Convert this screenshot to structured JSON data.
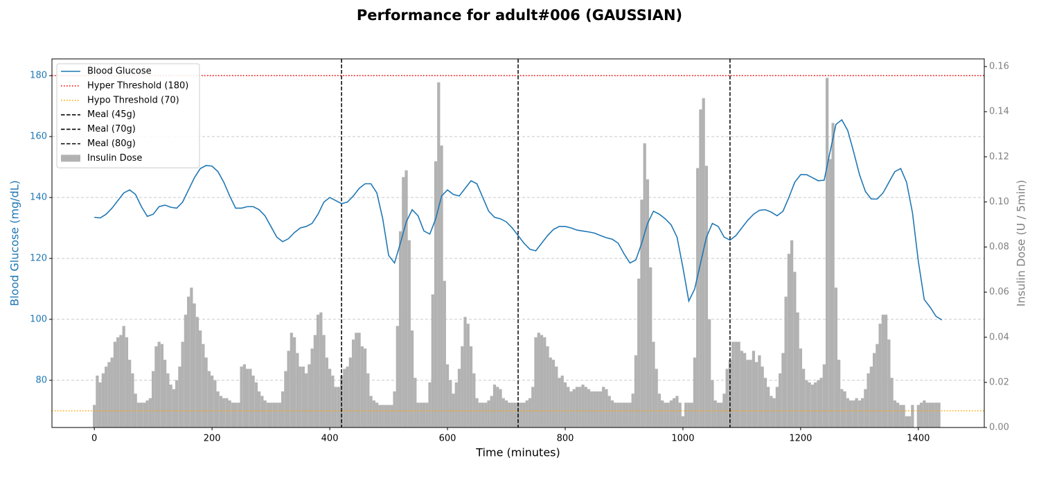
{
  "chart_data": {
    "type": "line",
    "title": "Performance for adult#006 (GAUSSIAN)",
    "xlabel": "Time (minutes)",
    "ylabel": "Blood Glucose (mg/dL)",
    "y2label": "Insulin Dose (U / 5min)",
    "xlim": [
      -72,
      1512
    ],
    "xticks": [
      0,
      200,
      400,
      600,
      800,
      1000,
      1200,
      1400
    ],
    "ylim": [
      64.5,
      185.5
    ],
    "yticks": [
      80,
      100,
      120,
      140,
      160,
      180
    ],
    "y2lim": [
      0,
      0.1634
    ],
    "y2ticks": [
      {
        "value": 0,
        "label": "0.00"
      },
      {
        "value": 0.02,
        "label": "0.02"
      },
      {
        "value": 0.04,
        "label": "0.04"
      },
      {
        "value": 0.06,
        "label": "0.06"
      },
      {
        "value": 0.08,
        "label": "0.08"
      },
      {
        "value": 0.1,
        "label": "0.10"
      },
      {
        "value": 0.12,
        "label": "0.12"
      },
      {
        "value": 0.14,
        "label": "0.14"
      },
      {
        "value": 0.16,
        "label": "0.16"
      }
    ],
    "grid": true,
    "legend": "upper left",
    "series": [
      {
        "name": "Blood Glucose",
        "type": "line",
        "color": "#1f77b4",
        "x": [
          0,
          10,
          20,
          30,
          40,
          50,
          60,
          70,
          80,
          90,
          100,
          110,
          120,
          130,
          140,
          150,
          160,
          170,
          180,
          190,
          200,
          210,
          220,
          230,
          240,
          250,
          260,
          270,
          280,
          290,
          300,
          310,
          320,
          330,
          340,
          350,
          360,
          370,
          380,
          390,
          400,
          410,
          420,
          430,
          440,
          450,
          460,
          470,
          480,
          490,
          500,
          510,
          520,
          530,
          540,
          550,
          560,
          570,
          580,
          590,
          600,
          610,
          620,
          630,
          640,
          650,
          660,
          670,
          680,
          690,
          700,
          710,
          720,
          730,
          740,
          750,
          760,
          770,
          780,
          790,
          800,
          810,
          820,
          830,
          840,
          850,
          860,
          870,
          880,
          890,
          900,
          910,
          920,
          930,
          940,
          950,
          960,
          970,
          980,
          990,
          1000,
          1010,
          1020,
          1030,
          1040,
          1050,
          1060,
          1070,
          1080,
          1090,
          1100,
          1110,
          1120,
          1130,
          1140,
          1150,
          1160,
          1170,
          1180,
          1190,
          1200,
          1210,
          1220,
          1230,
          1240,
          1250,
          1260,
          1270,
          1280,
          1290,
          1300,
          1310,
          1320,
          1330,
          1340,
          1350,
          1360,
          1370,
          1380,
          1390,
          1400,
          1410,
          1420,
          1430,
          1440
        ],
        "values": [
          133.5,
          133.3,
          134.5,
          136.5,
          139,
          141.5,
          142.5,
          141,
          137,
          133.8,
          134.5,
          137,
          137.5,
          136.8,
          136.5,
          138.5,
          142.5,
          146.5,
          149.5,
          150.5,
          150.3,
          148.5,
          145,
          140.5,
          136.5,
          136.5,
          137,
          137,
          136,
          134,
          130.5,
          127,
          125.5,
          126.5,
          128.5,
          130,
          130.5,
          131.5,
          134.5,
          138.5,
          140,
          139,
          138,
          138.5,
          140.5,
          143,
          144.5,
          144.5,
          141.5,
          133,
          121,
          118.5,
          125,
          132,
          136,
          134,
          129,
          128,
          133,
          140.5,
          142.5,
          141,
          140.5,
          143,
          145.5,
          144.5,
          140,
          135.5,
          133.5,
          133,
          132,
          130,
          127.5,
          125,
          123,
          122.5,
          125,
          127.5,
          129.5,
          130.5,
          130.5,
          130,
          129.3,
          129,
          128.7,
          128.3,
          127.5,
          126.8,
          126.3,
          125,
          121.5,
          118.5,
          119.5,
          125,
          131.5,
          135.5,
          134.5,
          133,
          131,
          127,
          117,
          106,
          110,
          118.5,
          127,
          131.5,
          130.5,
          127,
          126,
          127.5,
          130,
          132.5,
          134.5,
          135.8,
          136,
          135.2,
          134,
          135.5,
          140,
          145,
          147.5,
          147.5,
          146.5,
          145.5,
          145.7,
          155,
          164,
          165.5,
          162,
          155,
          147.5,
          142,
          139.5,
          139.5,
          141.5,
          145,
          148.5,
          149.5,
          145,
          135,
          119,
          106.5,
          104,
          101,
          99.8
        ]
      },
      {
        "name": "Insulin Dose",
        "type": "bar",
        "axis": "y2",
        "color": "#b2b2b2",
        "x": [
          0,
          5,
          10,
          15,
          20,
          25,
          30,
          35,
          40,
          45,
          50,
          55,
          60,
          65,
          70,
          75,
          80,
          85,
          90,
          95,
          100,
          105,
          110,
          115,
          120,
          125,
          130,
          135,
          140,
          145,
          150,
          155,
          160,
          165,
          170,
          175,
          180,
          185,
          190,
          195,
          200,
          205,
          210,
          215,
          220,
          225,
          230,
          235,
          240,
          245,
          250,
          255,
          260,
          265,
          270,
          275,
          280,
          285,
          290,
          295,
          300,
          305,
          310,
          315,
          320,
          325,
          330,
          335,
          340,
          345,
          350,
          355,
          360,
          365,
          370,
          375,
          380,
          385,
          390,
          395,
          400,
          405,
          410,
          415,
          420,
          425,
          430,
          435,
          440,
          445,
          450,
          455,
          460,
          465,
          470,
          475,
          480,
          485,
          490,
          495,
          500,
          505,
          510,
          515,
          520,
          525,
          530,
          535,
          540,
          545,
          550,
          555,
          560,
          565,
          570,
          575,
          580,
          585,
          590,
          595,
          600,
          605,
          610,
          615,
          620,
          625,
          630,
          635,
          640,
          645,
          650,
          655,
          660,
          665,
          670,
          675,
          680,
          685,
          690,
          695,
          700,
          705,
          710,
          715,
          720,
          725,
          730,
          735,
          740,
          745,
          750,
          755,
          760,
          765,
          770,
          775,
          780,
          785,
          790,
          795,
          800,
          805,
          810,
          815,
          820,
          825,
          830,
          835,
          840,
          845,
          850,
          855,
          860,
          865,
          870,
          875,
          880,
          885,
          890,
          895,
          900,
          905,
          910,
          915,
          920,
          925,
          930,
          935,
          940,
          945,
          950,
          955,
          960,
          965,
          970,
          975,
          980,
          985,
          990,
          995,
          1000,
          1005,
          1010,
          1015,
          1020,
          1025,
          1030,
          1035,
          1040,
          1045,
          1050,
          1055,
          1060,
          1065,
          1070,
          1075,
          1080,
          1085,
          1090,
          1095,
          1100,
          1105,
          1110,
          1115,
          1120,
          1125,
          1130,
          1135,
          1140,
          1145,
          1150,
          1155,
          1160,
          1165,
          1170,
          1175,
          1180,
          1185,
          1190,
          1195,
          1200,
          1205,
          1210,
          1215,
          1220,
          1225,
          1230,
          1235,
          1240,
          1245,
          1250,
          1255,
          1260,
          1265,
          1270,
          1275,
          1280,
          1285,
          1290,
          1295,
          1300,
          1305,
          1310,
          1315,
          1320,
          1325,
          1330,
          1335,
          1340,
          1345,
          1350,
          1355,
          1360,
          1365,
          1370,
          1375,
          1380,
          1385,
          1390,
          1395,
          1400,
          1405,
          1410,
          1415,
          1420,
          1425,
          1430,
          1435
        ],
        "values": [
          0.01,
          0.023,
          0.02,
          0.024,
          0.027,
          0.029,
          0.031,
          0.038,
          0.04,
          0.041,
          0.045,
          0.04,
          0.03,
          0.024,
          0.015,
          0.011,
          0.011,
          0.011,
          0.012,
          0.013,
          0.025,
          0.036,
          0.038,
          0.037,
          0.03,
          0.024,
          0.019,
          0.017,
          0.021,
          0.027,
          0.038,
          0.05,
          0.058,
          0.062,
          0.055,
          0.049,
          0.043,
          0.037,
          0.031,
          0.025,
          0.023,
          0.021,
          0.016,
          0.014,
          0.013,
          0.013,
          0.012,
          0.011,
          0.011,
          0.011,
          0.027,
          0.028,
          0.026,
          0.026,
          0.023,
          0.02,
          0.016,
          0.014,
          0.012,
          0.011,
          0.011,
          0.011,
          0.011,
          0.011,
          0.016,
          0.025,
          0.034,
          0.042,
          0.04,
          0.033,
          0.027,
          0.027,
          0.024,
          0.028,
          0.035,
          0.041,
          0.05,
          0.051,
          0.041,
          0.031,
          0.026,
          0.023,
          0.018,
          0.018,
          0.023,
          0.026,
          0.027,
          0.031,
          0.039,
          0.042,
          0.042,
          0.036,
          0.035,
          0.024,
          0.014,
          0.012,
          0.011,
          0.01,
          0.01,
          0.01,
          0.01,
          0.01,
          0.016,
          0.045,
          0.087,
          0.111,
          0.114,
          0.083,
          0.043,
          0.022,
          0.011,
          0.011,
          0.011,
          0.011,
          0.02,
          0.059,
          0.118,
          0.153,
          0.125,
          0.065,
          0.028,
          0.021,
          0.015,
          0.02,
          0.026,
          0.036,
          0.049,
          0.046,
          0.036,
          0.024,
          0.013,
          0.011,
          0.011,
          0.011,
          0.012,
          0.014,
          0.019,
          0.018,
          0.017,
          0.013,
          0.012,
          0.011,
          0.011,
          0.011,
          0.011,
          0.011,
          0.011,
          0.012,
          0.013,
          0.018,
          0.04,
          0.042,
          0.041,
          0.04,
          0.036,
          0.031,
          0.03,
          0.027,
          0.022,
          0.023,
          0.02,
          0.018,
          0.016,
          0.017,
          0.018,
          0.018,
          0.019,
          0.018,
          0.017,
          0.016,
          0.016,
          0.016,
          0.016,
          0.018,
          0.017,
          0.014,
          0.012,
          0.011,
          0.011,
          0.011,
          0.011,
          0.011,
          0.011,
          0.015,
          0.032,
          0.066,
          0.101,
          0.126,
          0.11,
          0.071,
          0.038,
          0.026,
          0.015,
          0.012,
          0.011,
          0.011,
          0.012,
          0.013,
          0.014,
          0.011,
          0.005,
          0.011,
          0.011,
          0.011,
          0.031,
          0.115,
          0.141,
          0.146,
          0.116,
          0.048,
          0.021,
          0.012,
          0.011,
          0.011,
          0.015,
          0.026,
          0.03,
          0.038,
          0.038,
          0.038,
          0.034,
          0.033,
          0.03,
          0.03,
          0.034,
          0.029,
          0.032,
          0.027,
          0.022,
          0.018,
          0.014,
          0.013,
          0.018,
          0.024,
          0.033,
          0.058,
          0.077,
          0.083,
          0.069,
          0.051,
          0.035,
          0.026,
          0.021,
          0.02,
          0.019,
          0.02,
          0.021,
          0.022,
          0.028,
          0.155,
          0.119,
          0.135,
          0.062,
          0.03,
          0.017,
          0.016,
          0.013,
          0.012,
          0.012,
          0.013,
          0.012,
          0.013,
          0.017,
          0.024,
          0.027,
          0.033,
          0.037,
          0.046,
          0.05,
          0.05,
          0.039,
          0.022,
          0.012,
          0.011,
          0.01,
          0.01,
          0.005,
          0.005,
          0.01,
          0,
          0.01,
          0.011,
          0.012,
          0.011,
          0.011,
          0.011,
          0.011,
          0.011
        ]
      }
    ],
    "hlines": [
      {
        "name": "Hyper Threshold (180)",
        "value": 180,
        "color": "#ff0000"
      },
      {
        "name": "Hypo Threshold (70)",
        "value": 70,
        "color": "#ffa500"
      }
    ],
    "vlines": [
      {
        "name": "Meal (45g)",
        "x": 420,
        "color": "#000000"
      },
      {
        "name": "Meal (70g)",
        "x": 720,
        "color": "#000000"
      },
      {
        "name": "Meal (80g)",
        "x": 1080,
        "color": "#000000"
      }
    ]
  }
}
